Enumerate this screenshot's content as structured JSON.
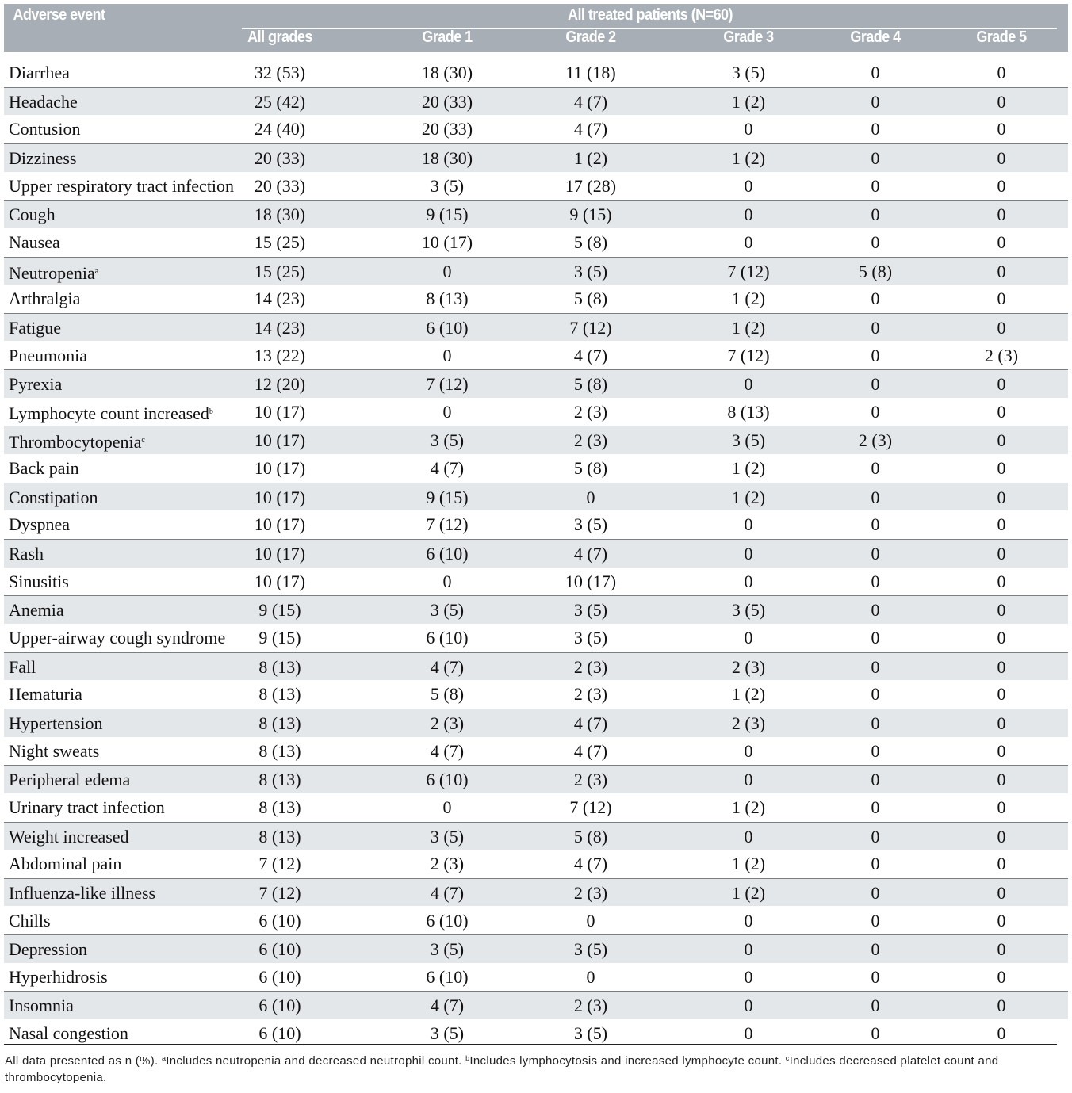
{
  "table": {
    "header": {
      "event": "Adverse event",
      "group": "All treated patients (N=60)",
      "columns": [
        "All grades",
        "Grade 1",
        "Grade 2",
        "Grade 3",
        "Grade 4",
        "Grade 5"
      ]
    },
    "rows": [
      {
        "event": "Diarrhea",
        "cells": [
          "32 (53)",
          "18 (30)",
          "11 (18)",
          "3 (5)",
          "0",
          "0"
        ]
      },
      {
        "event": "Headache",
        "cells": [
          "25 (42)",
          "20 (33)",
          "4 (7)",
          "1 (2)",
          "0",
          "0"
        ]
      },
      {
        "event": "Contusion",
        "cells": [
          "24 (40)",
          "20 (33)",
          "4 (7)",
          "0",
          "0",
          "0"
        ]
      },
      {
        "event": "Dizziness",
        "cells": [
          "20 (33)",
          "18 (30)",
          "1 (2)",
          "1 (2)",
          "0",
          "0"
        ]
      },
      {
        "event": "Upper respiratory tract infection",
        "cells": [
          "20 (33)",
          "3 (5)",
          "17 (28)",
          "0",
          "0",
          "0"
        ]
      },
      {
        "event": "Cough",
        "cells": [
          "18 (30)",
          "9 (15)",
          "9 (15)",
          "0",
          "0",
          "0"
        ]
      },
      {
        "event": "Nausea",
        "cells": [
          "15 (25)",
          "10 (17)",
          "5 (8)",
          "0",
          "0",
          "0"
        ]
      },
      {
        "event": "Neutropenia",
        "mark": "a",
        "cells": [
          "15 (25)",
          "0",
          "3 (5)",
          "7 (12)",
          "5 (8)",
          "0"
        ]
      },
      {
        "event": "Arthralgia",
        "cells": [
          "14 (23)",
          "8 (13)",
          "5 (8)",
          "1 (2)",
          "0",
          "0"
        ]
      },
      {
        "event": "Fatigue",
        "cells": [
          "14 (23)",
          "6 (10)",
          "7 (12)",
          "1 (2)",
          "0",
          "0"
        ]
      },
      {
        "event": "Pneumonia",
        "cells": [
          "13 (22)",
          "0",
          "4 (7)",
          "7 (12)",
          "0",
          "2 (3)"
        ]
      },
      {
        "event": "Pyrexia",
        "cells": [
          "12 (20)",
          "7 (12)",
          "5 (8)",
          "0",
          "0",
          "0"
        ]
      },
      {
        "event": "Lymphocyte count increased",
        "mark": "b",
        "cells": [
          "10 (17)",
          "0",
          "2 (3)",
          "8 (13)",
          "0",
          "0"
        ]
      },
      {
        "event": "Thrombocytopenia",
        "mark": "c",
        "cells": [
          "10 (17)",
          "3 (5)",
          "2 (3)",
          "3 (5)",
          "2 (3)",
          "0"
        ]
      },
      {
        "event": "Back pain",
        "cells": [
          "10 (17)",
          "4 (7)",
          "5 (8)",
          "1 (2)",
          "0",
          "0"
        ]
      },
      {
        "event": "Constipation",
        "cells": [
          "10 (17)",
          "9 (15)",
          "0",
          "1 (2)",
          "0",
          "0"
        ]
      },
      {
        "event": "Dyspnea",
        "cells": [
          "10 (17)",
          "7 (12)",
          "3 (5)",
          "0",
          "0",
          "0"
        ]
      },
      {
        "event": "Rash",
        "cells": [
          "10 (17)",
          "6 (10)",
          "4 (7)",
          "0",
          "0",
          "0"
        ]
      },
      {
        "event": "Sinusitis",
        "cells": [
          "10 (17)",
          "0",
          "10 (17)",
          "0",
          "0",
          "0"
        ]
      },
      {
        "event": "Anemia",
        "cells": [
          "9 (15)",
          "3 (5)",
          "3 (5)",
          "3 (5)",
          "0",
          "0"
        ]
      },
      {
        "event": "Upper-airway cough syndrome",
        "cells": [
          "9 (15)",
          "6 (10)",
          "3 (5)",
          "0",
          "0",
          "0"
        ]
      },
      {
        "event": "Fall",
        "cells": [
          "8 (13)",
          "4 (7)",
          "2 (3)",
          "2 (3)",
          "0",
          "0"
        ]
      },
      {
        "event": "Hematuria",
        "cells": [
          "8 (13)",
          "5 (8)",
          "2 (3)",
          "1 (2)",
          "0",
          "0"
        ]
      },
      {
        "event": "Hypertension",
        "cells": [
          "8 (13)",
          "2 (3)",
          "4 (7)",
          "2 (3)",
          "0",
          "0"
        ]
      },
      {
        "event": "Night sweats",
        "cells": [
          "8 (13)",
          "4 (7)",
          "4 (7)",
          "0",
          "0",
          "0"
        ]
      },
      {
        "event": "Peripheral edema",
        "cells": [
          "8 (13)",
          "6 (10)",
          "2 (3)",
          "0",
          "0",
          "0"
        ]
      },
      {
        "event": "Urinary tract infection",
        "cells": [
          "8 (13)",
          "0",
          "7 (12)",
          "1 (2)",
          "0",
          "0"
        ]
      },
      {
        "event": "Weight increased",
        "cells": [
          "8 (13)",
          "3 (5)",
          "5 (8)",
          "0",
          "0",
          "0"
        ]
      },
      {
        "event": "Abdominal pain",
        "cells": [
          "7 (12)",
          "2 (3)",
          "4 (7)",
          "1 (2)",
          "0",
          "0"
        ]
      },
      {
        "event": "Influenza-like illness",
        "cells": [
          "7 (12)",
          "4 (7)",
          "2 (3)",
          "1 (2)",
          "0",
          "0"
        ]
      },
      {
        "event": "Chills",
        "cells": [
          "6 (10)",
          "6 (10)",
          "0",
          "0",
          "0",
          "0"
        ]
      },
      {
        "event": "Depression",
        "cells": [
          "6 (10)",
          "3 (5)",
          "3 (5)",
          "0",
          "0",
          "0"
        ]
      },
      {
        "event": "Hyperhidrosis",
        "cells": [
          "6 (10)",
          "6 (10)",
          "0",
          "0",
          "0",
          "0"
        ]
      },
      {
        "event": "Insomnia",
        "cells": [
          "6 (10)",
          "4 (7)",
          "2 (3)",
          "0",
          "0",
          "0"
        ]
      },
      {
        "event": "Nasal congestion",
        "cells": [
          "6 (10)",
          "3 (5)",
          "3 (5)",
          "0",
          "0",
          "0"
        ]
      }
    ]
  },
  "footnote": {
    "text": "All data presented as n (%).",
    "notes": [
      {
        "mark": "a",
        "text": "Includes neutropenia and decreased neutrophil count."
      },
      {
        "mark": "b",
        "text": "Includes lymphocytosis and increased lymphocyte count."
      },
      {
        "mark": "c",
        "text": "Includes decreased platelet count and thrombocytopenia."
      }
    ]
  }
}
